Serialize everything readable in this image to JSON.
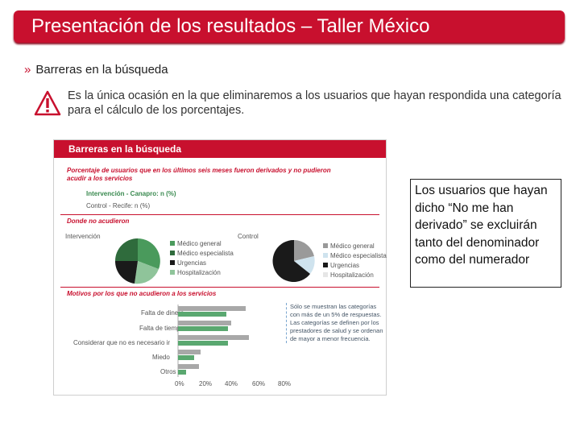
{
  "slide": {
    "title": "Presentación de los resultados – Taller México",
    "bullet": "Barreras en la búsqueda",
    "note": "Es la única ocasión en la que eliminaremos a los usuarios que hayan respondida una categoría para el cálculo de los porcentajes.",
    "callout": "Los usuarios que hayan dicho “No me han derivado” se excluirán tanto del denominador como del numerador"
  },
  "embedded_slide": {
    "header": "Barreras en la búsqueda",
    "subtitle": "Porcentaje de usuarios que en los últimos seis meses fueron derivados y no pudieron acudir a los servicios",
    "groups": [
      "Intervención - Canapro: n (%)",
      "Control - Recife: n (%)"
    ],
    "section1": "Donde no acudieron",
    "pie1_label": "Intervención",
    "pie2_label": "Control",
    "pie_legend": [
      "Médico general",
      "Médico especialista",
      "Urgencias",
      "Hospitalización"
    ],
    "section2": "Motivos por los que no acudieron a los servicios",
    "bar_categories": [
      "Falta de dinero",
      "Falta de tiempo",
      "Considerar que no es necesario ir",
      "Miedo",
      "Otros"
    ],
    "axis_ticks": [
      "0%",
      "20%",
      "40%",
      "60%",
      "80%"
    ],
    "side_note": "Sólo se muestran las categorías con más de un 5% de respuestas. Las categorías se definen por los prestadores de salud y se ordenan de mayor a menor frecuencia."
  },
  "colors": {
    "title_bg": "#c8102e",
    "pie_green": "#4a9a5c",
    "pie_dark": "#1a1a1a",
    "pie_gray": "#9a9a9a",
    "pie_light": "#cfe3ee",
    "bar_gray": "#a8a8a8",
    "bar_green": "#5aa870"
  }
}
